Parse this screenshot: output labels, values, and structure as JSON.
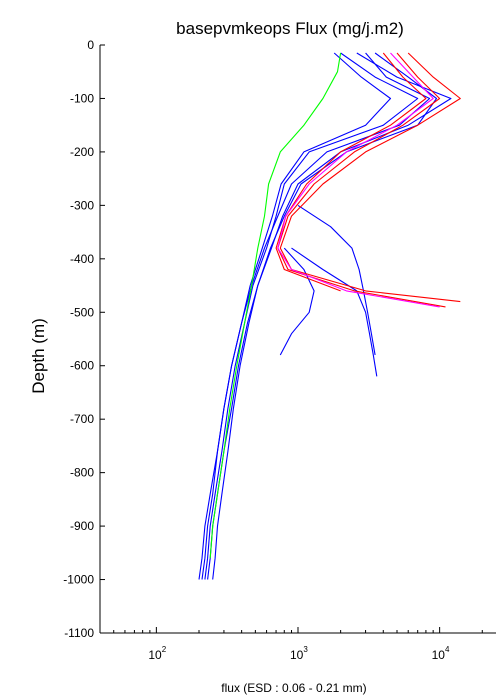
{
  "chart_data": {
    "type": "line",
    "title": "basepvmkeops  Flux   (mg/j.m2)",
    "xlabel": "flux (ESD : 0.06 - 0.21 mm)",
    "ylabel": "Depth (m)",
    "x_scale": "log",
    "xlim": [
      40,
      25000
    ],
    "ylim": [
      -1100,
      0
    ],
    "x_ticks": [
      100,
      1000,
      10000
    ],
    "x_tick_labels": [
      {
        "base": "10",
        "exp": "2"
      },
      {
        "base": "10",
        "exp": "3"
      },
      {
        "base": "10",
        "exp": "4"
      }
    ],
    "y_ticks": [
      0,
      -100,
      -200,
      -300,
      -400,
      -500,
      -600,
      -700,
      -800,
      -900,
      -1000,
      -1100
    ],
    "y_tick_labels": [
      "0",
      "-100",
      "-200",
      "-300",
      "-400",
      "-500",
      "-600",
      "-700",
      "-800",
      "-900",
      "-1000",
      "-1100"
    ],
    "grid": false,
    "series": [
      {
        "color": "#0000ff",
        "depth": [
          -15,
          -60,
          -100,
          -150,
          -200,
          -260,
          -320,
          -380,
          -450,
          -520,
          -600,
          -680,
          -760,
          -840,
          -900,
          -960,
          -1000
        ],
        "flux": [
          2000,
          3500,
          7000,
          4000,
          1200,
          800,
          700,
          600,
          480,
          420,
          360,
          320,
          290,
          260,
          240,
          230,
          220
        ]
      },
      {
        "color": "#0000ff",
        "depth": [
          -15,
          -60,
          -100,
          -150,
          -200,
          -260,
          -320,
          -380,
          -450,
          -520,
          -600,
          -680,
          -760,
          -840,
          -900,
          -960,
          -1000
        ],
        "flux": [
          2600,
          5000,
          12000,
          6000,
          2000,
          1000,
          780,
          650,
          520,
          450,
          390,
          350,
          320,
          290,
          270,
          260,
          250
        ]
      },
      {
        "color": "#0000ff",
        "depth": [
          -15,
          -60,
          -100,
          -150,
          -200,
          -260,
          -320,
          -380,
          -450,
          -520,
          -600,
          -680,
          -760,
          -840,
          -900,
          -960,
          -1000
        ],
        "flux": [
          3000,
          4200,
          8500,
          5200,
          1600,
          900,
          720,
          580,
          470,
          400,
          340,
          300,
          270,
          240,
          220,
          210,
          200
        ]
      },
      {
        "color": "#0000ff",
        "depth": [
          -15,
          -60,
          -100,
          -150,
          -200,
          -260,
          -320,
          -380,
          -450,
          -520,
          -600,
          -680,
          -760,
          -840,
          -900,
          -960,
          -1000
        ],
        "flux": [
          1800,
          2800,
          4500,
          3000,
          1100,
          760,
          660,
          560,
          460,
          400,
          340,
          300,
          270,
          250,
          230,
          220,
          210
        ]
      },
      {
        "color": "#0000ff",
        "depth": [
          -15,
          -60,
          -100,
          -150,
          -200,
          -260,
          -320,
          -380,
          -450,
          -520,
          -600,
          -680,
          -760,
          -840,
          -900,
          -960,
          -1000
        ],
        "flux": [
          3500,
          6000,
          9500,
          7000,
          2200,
          1050,
          800,
          640,
          520,
          440,
          380,
          340,
          300,
          270,
          250,
          240,
          230
        ]
      },
      {
        "color": "#0000ff",
        "depth": [
          -380,
          -420,
          -460,
          -500,
          -540,
          -580,
          -620
        ],
        "flux": [
          900,
          1500,
          2600,
          3000,
          3200,
          3400,
          3600
        ]
      },
      {
        "color": "#0000ff",
        "depth": [
          -380,
          -420,
          -460,
          -500,
          -540,
          -580
        ],
        "flux": [
          800,
          1100,
          1300,
          1200,
          900,
          750
        ]
      },
      {
        "color": "#0000ff",
        "depth": [
          -300,
          -340,
          -380,
          -420,
          -460,
          -500,
          -540,
          -580
        ],
        "flux": [
          1000,
          1700,
          2400,
          2700,
          2900,
          3100,
          3300,
          3500
        ]
      },
      {
        "color": "#00ff00",
        "depth": [
          -15,
          -50,
          -100,
          -150,
          -200,
          -260,
          -320,
          -380,
          -450,
          -520,
          -600,
          -680,
          -760,
          -840,
          -900,
          -960
        ],
        "flux": [
          2000,
          1900,
          1500,
          1100,
          750,
          620,
          580,
          520,
          470,
          420,
          370,
          330,
          300,
          270,
          250,
          240
        ]
      },
      {
        "color": "#ff0000",
        "depth": [
          -15,
          -60,
          -100,
          -150,
          -200,
          -260,
          -320,
          -380,
          -420,
          -460,
          -480
        ],
        "flux": [
          6000,
          9000,
          14000,
          7000,
          3000,
          1500,
          900,
          750,
          900,
          3000,
          14000
        ]
      },
      {
        "color": "#ff0000",
        "depth": [
          -15,
          -60,
          -100,
          -150,
          -200,
          -260,
          -320,
          -380,
          -420,
          -460,
          -490
        ],
        "flux": [
          5000,
          7000,
          10000,
          5500,
          2500,
          1300,
          850,
          720,
          850,
          2500,
          11000
        ]
      },
      {
        "color": "#ff0000",
        "depth": [
          -15,
          -60,
          -100,
          -150,
          -200,
          -260,
          -320,
          -380,
          -420,
          -460
        ],
        "flux": [
          4000,
          5500,
          8000,
          4500,
          2000,
          1150,
          820,
          700,
          800,
          2000
        ]
      },
      {
        "color": "#ff00ff",
        "depth": [
          -15,
          -60,
          -100,
          -150,
          -200,
          -260,
          -320,
          -380,
          -420,
          -460,
          -490
        ],
        "flux": [
          4500,
          6500,
          9000,
          5000,
          2200,
          1200,
          820,
          720,
          900,
          2200,
          10000
        ]
      }
    ]
  }
}
